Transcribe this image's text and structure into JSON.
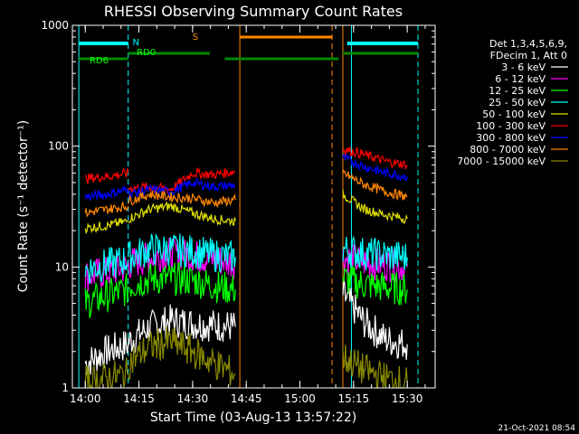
{
  "chart_data": {
    "type": "line",
    "title": "RHESSI Observing Summary Count Rates",
    "xlabel": "Start Time (03-Aug-13 13:57:22)",
    "ylabel": "Count Rate (s⁻¹ detector⁻¹)",
    "y_scale": "log",
    "ylim": [
      1,
      1000
    ],
    "x_ticks": [
      "14:00",
      "14:15",
      "14:30",
      "14:45",
      "15:00",
      "15:15",
      "15:30"
    ],
    "y_ticks": [
      "1",
      "10",
      "100",
      "1000"
    ],
    "footer_timestamp": "21-Oct-2021 08:54",
    "legend": {
      "header": [
        "Det 1,3,4,5,6,9,",
        "FDecim 1, Att 0"
      ],
      "placement": "right"
    },
    "segments": [
      {
        "name": "3 - 6 keV",
        "color": "#ffffff",
        "values": [
          [
            [
              14.0,
              1.6
            ],
            [
              14.1,
              2.0
            ],
            [
              14.2,
              2.3
            ]
          ],
          [
            [
              14.2,
              2.4
            ],
            [
              14.3,
              3.2
            ],
            [
              14.4,
              3.6
            ],
            [
              14.5,
              3.4
            ],
            [
              14.6,
              3.3
            ],
            [
              14.7,
              3.2
            ]
          ],
          [
            [
              15.2,
              6
            ],
            [
              15.3,
              3.5
            ],
            [
              15.4,
              2.5
            ],
            [
              15.5,
              2.3
            ]
          ]
        ]
      },
      {
        "name": "6 - 12 keV",
        "color": "#ff00ff",
        "values": [
          [
            [
              14.0,
              8.5
            ],
            [
              14.1,
              9.0
            ],
            [
              14.2,
              10.0
            ]
          ],
          [
            [
              14.2,
              10.5
            ],
            [
              14.3,
              12
            ],
            [
              14.4,
              13
            ],
            [
              14.5,
              12.5
            ],
            [
              14.6,
              11.5
            ],
            [
              14.7,
              11
            ]
          ],
          [
            [
              15.2,
              12
            ],
            [
              15.3,
              11
            ],
            [
              15.4,
              10.5
            ],
            [
              15.5,
              10
            ]
          ]
        ]
      },
      {
        "name": "12 - 25 keV",
        "color": "#00ff00",
        "values": [
          [
            [
              14.0,
              5.0
            ],
            [
              14.1,
              5.8
            ],
            [
              14.2,
              6.5
            ]
          ],
          [
            [
              14.2,
              7.0
            ],
            [
              14.3,
              8.0
            ],
            [
              14.4,
              8.0
            ],
            [
              14.5,
              7.8
            ],
            [
              14.6,
              7.0
            ],
            [
              14.7,
              6.5
            ]
          ],
          [
            [
              15.2,
              8
            ],
            [
              15.3,
              7.2
            ],
            [
              15.4,
              6.8
            ],
            [
              15.5,
              6.5
            ]
          ]
        ]
      },
      {
        "name": "25 - 50 keV",
        "color": "#00ffff",
        "values": [
          [
            [
              14.0,
              9.5
            ],
            [
              14.1,
              10.5
            ],
            [
              14.2,
              11.5
            ]
          ],
          [
            [
              14.2,
              12
            ],
            [
              14.3,
              14
            ],
            [
              14.4,
              14
            ],
            [
              14.5,
              13.5
            ],
            [
              14.6,
              12.5
            ],
            [
              14.7,
              12
            ]
          ],
          [
            [
              15.2,
              14
            ],
            [
              15.3,
              13
            ],
            [
              15.4,
              12.5
            ],
            [
              15.5,
              12
            ]
          ]
        ]
      },
      {
        "name": "50 - 100 keV",
        "color": "#dddd00",
        "values": [
          [
            [
              14.0,
              21
            ],
            [
              14.1,
              22
            ],
            [
              14.2,
              24
            ]
          ],
          [
            [
              14.2,
              25
            ],
            [
              14.3,
              30
            ],
            [
              14.4,
              32
            ],
            [
              14.5,
              28
            ],
            [
              14.6,
              25
            ],
            [
              14.7,
              24
            ]
          ],
          [
            [
              15.2,
              40
            ],
            [
              15.3,
              30
            ],
            [
              15.4,
              27
            ],
            [
              15.5,
              25
            ]
          ]
        ]
      },
      {
        "name": "100 - 300 keV",
        "color": "#ff0000",
        "values": [
          [
            [
              14.0,
              54
            ],
            [
              14.1,
              56
            ],
            [
              14.2,
              60
            ]
          ],
          [
            [
              14.2,
              45
            ],
            [
              14.3,
              46
            ],
            [
              14.4,
              44
            ],
            [
              14.5,
              60
            ],
            [
              14.6,
              58
            ],
            [
              14.7,
              62
            ]
          ],
          [
            [
              15.2,
              95
            ],
            [
              15.3,
              85
            ],
            [
              15.4,
              75
            ],
            [
              15.5,
              70
            ]
          ]
        ]
      },
      {
        "name": "300 - 800 keV",
        "color": "#0000ff",
        "values": [
          [
            [
              14.0,
              38
            ],
            [
              14.1,
              40
            ],
            [
              14.2,
              44
            ]
          ],
          [
            [
              14.2,
              40
            ],
            [
              14.3,
              44
            ],
            [
              14.4,
              42
            ],
            [
              14.5,
              50
            ],
            [
              14.6,
              46
            ],
            [
              14.7,
              48
            ]
          ],
          [
            [
              15.2,
              80
            ],
            [
              15.3,
              68
            ],
            [
              15.4,
              60
            ],
            [
              15.5,
              56
            ]
          ]
        ]
      },
      {
        "name": "800 - 7000 keV",
        "color": "#ff8800",
        "values": [
          [
            [
              14.0,
              28
            ],
            [
              14.1,
              30
            ],
            [
              14.2,
              32
            ]
          ],
          [
            [
              14.2,
              35
            ],
            [
              14.3,
              40
            ],
            [
              14.4,
              38
            ],
            [
              14.5,
              37
            ],
            [
              14.6,
              34
            ],
            [
              14.7,
              36
            ]
          ],
          [
            [
              15.2,
              60
            ],
            [
              15.3,
              48
            ],
            [
              15.4,
              42
            ],
            [
              15.5,
              38
            ]
          ]
        ]
      },
      {
        "name": "7000 - 15000 keV",
        "color": "#888800",
        "values": [
          [
            [
              14.0,
              1.1
            ],
            [
              14.1,
              1.2
            ],
            [
              14.2,
              1.3
            ]
          ],
          [
            [
              14.2,
              1.6
            ],
            [
              14.3,
              2.2
            ],
            [
              14.4,
              2.4
            ],
            [
              14.5,
              2.0
            ],
            [
              14.6,
              1.6
            ],
            [
              14.7,
              1.3
            ]
          ],
          [
            [
              15.2,
              1.8
            ],
            [
              15.3,
              1.4
            ],
            [
              15.4,
              1.2
            ],
            [
              15.5,
              1.1
            ]
          ]
        ]
      }
    ],
    "flags": [
      {
        "name": "N",
        "label": "N",
        "color": "#00ffff",
        "ranges": [
          [
            13.97,
            14.2
          ],
          [
            15.22,
            15.55
          ]
        ]
      },
      {
        "name": "S",
        "label": "S",
        "color": "#ff8800",
        "ranges": [
          [
            14.72,
            15.15
          ]
        ]
      },
      {
        "name": "RD0",
        "label": "RD0",
        "color": "#008800",
        "ranges": [
          [
            14.2,
            14.58
          ],
          [
            15.2,
            15.55
          ]
        ]
      },
      {
        "name": "RD6",
        "label": "RD6",
        "color": "#008800",
        "ranges": [
          [
            13.97,
            14.2
          ],
          [
            14.65,
            15.18
          ]
        ]
      }
    ],
    "vlines": [
      {
        "x": 13.97,
        "color": "#00ffff",
        "style": "solid"
      },
      {
        "x": 14.2,
        "color": "#00ffff",
        "style": "dashed"
      },
      {
        "x": 14.72,
        "color": "#ff8800",
        "style": "solid"
      },
      {
        "x": 15.15,
        "color": "#ff8800",
        "style": "dashed"
      },
      {
        "x": 15.2,
        "color": "#ff8800",
        "style": "solid"
      },
      {
        "x": 15.24,
        "color": "#00ffff",
        "style": "solid"
      },
      {
        "x": 15.55,
        "color": "#00ffff",
        "style": "dashed"
      }
    ]
  }
}
